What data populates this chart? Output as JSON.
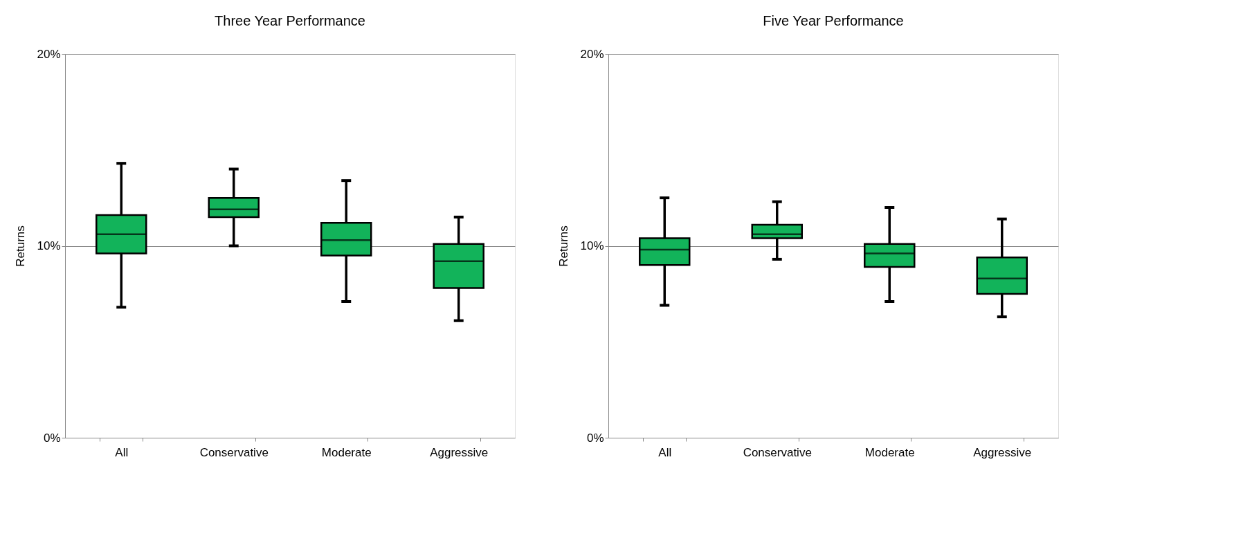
{
  "chart_data": [
    {
      "type": "box",
      "title": "Three Year Performance",
      "ylabel": "Returns",
      "categories": [
        "All",
        "Conservative",
        "Moderate",
        "Aggressive"
      ],
      "ylim": [
        0,
        20
      ],
      "yticks": [
        {
          "value": 0,
          "label": "0%"
        },
        {
          "value": 10,
          "label": "10%"
        },
        {
          "value": 20,
          "label": "20%"
        }
      ],
      "grid": "y",
      "series": [
        {
          "color": "#12b35a",
          "boxes": [
            {
              "low": 6.8,
              "q1": 9.6,
              "median": 10.6,
              "q3": 11.6,
              "high": 14.3
            },
            {
              "low": 10.0,
              "q1": 11.5,
              "median": 11.9,
              "q3": 12.5,
              "high": 14.0
            },
            {
              "low": 7.1,
              "q1": 9.5,
              "median": 10.3,
              "q3": 11.2,
              "high": 13.4
            },
            {
              "low": 6.1,
              "q1": 7.8,
              "median": 9.2,
              "q3": 10.1,
              "high": 11.5
            }
          ]
        }
      ]
    },
    {
      "type": "box",
      "title": "Five Year Performance",
      "ylabel": "Returns",
      "categories": [
        "All",
        "Conservative",
        "Moderate",
        "Aggressive"
      ],
      "ylim": [
        0,
        20
      ],
      "yticks": [
        {
          "value": 0,
          "label": "0%"
        },
        {
          "value": 10,
          "label": "10%"
        },
        {
          "value": 20,
          "label": "20%"
        }
      ],
      "grid": "y",
      "series": [
        {
          "color": "#12b35a",
          "boxes": [
            {
              "low": 6.9,
              "q1": 9.0,
              "median": 9.8,
              "q3": 10.4,
              "high": 12.5
            },
            {
              "low": 9.3,
              "q1": 10.4,
              "median": 10.6,
              "q3": 11.1,
              "high": 12.3
            },
            {
              "low": 7.1,
              "q1": 8.9,
              "median": 9.6,
              "q3": 10.1,
              "high": 12.0
            },
            {
              "low": 6.3,
              "q1": 7.5,
              "median": 8.3,
              "q3": 9.4,
              "high": 11.4
            }
          ]
        }
      ]
    }
  ]
}
